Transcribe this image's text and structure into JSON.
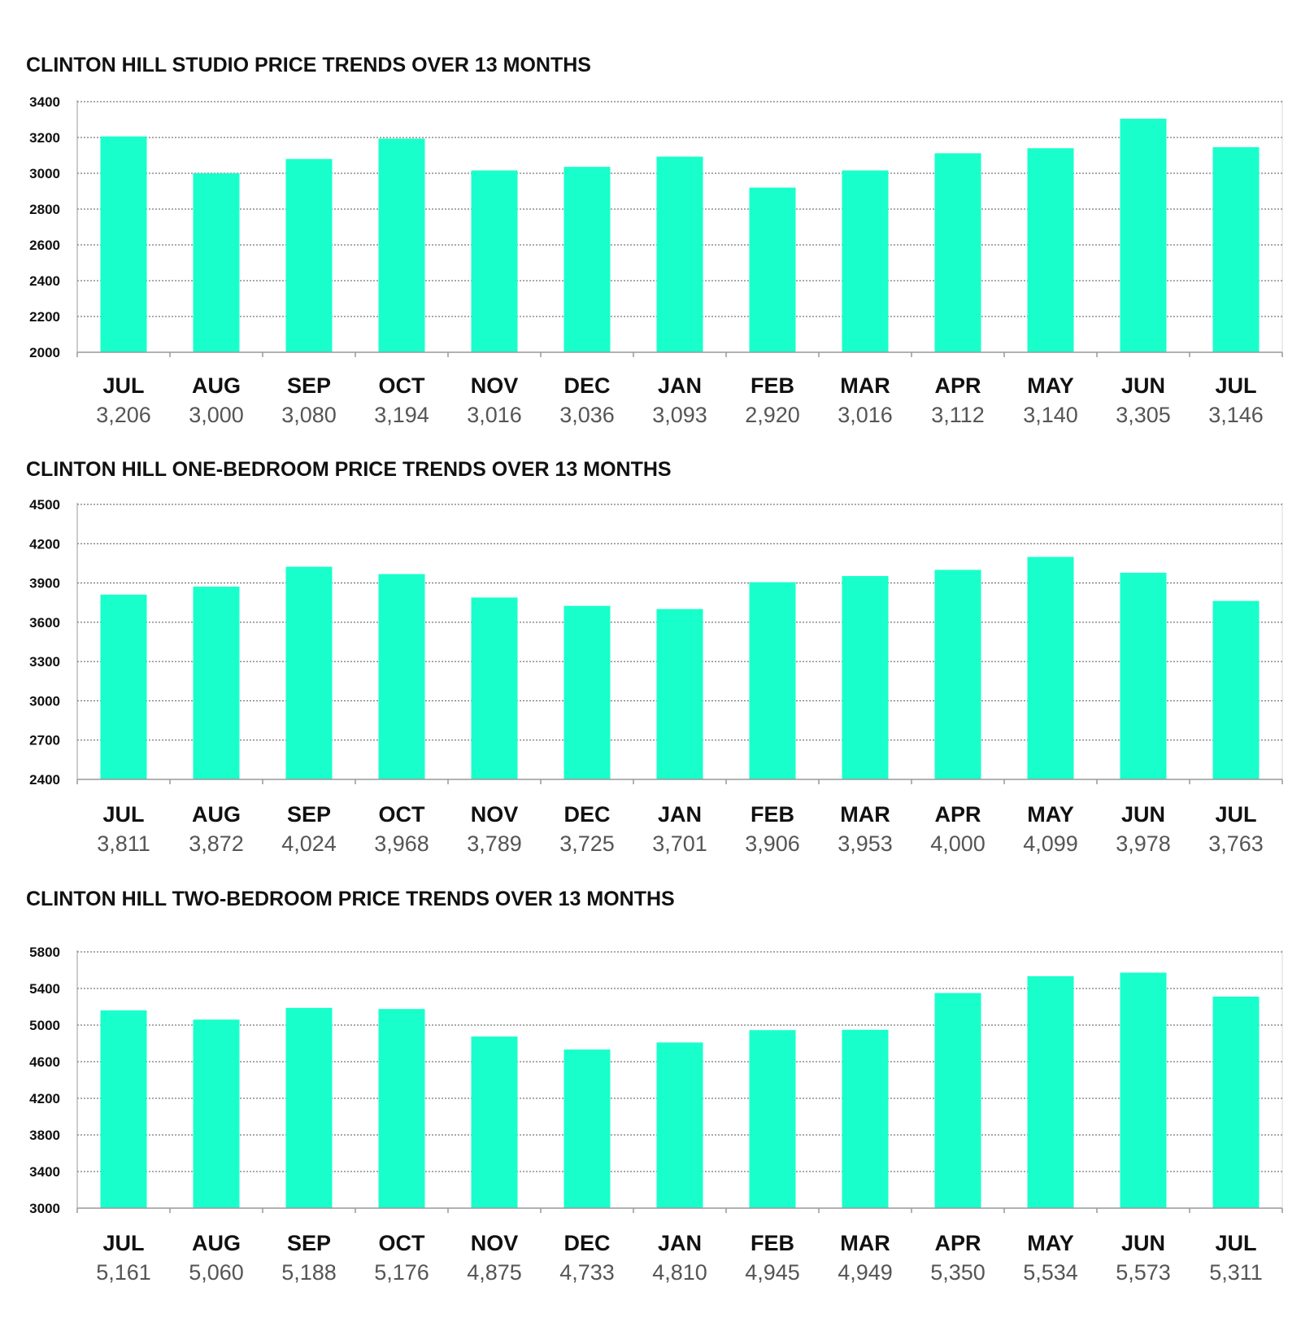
{
  "colors": {
    "bar": "#19FFCB",
    "grid": "#555555",
    "axis": "#999999",
    "title": "#111111",
    "value_label": "#555555"
  },
  "chart_data": [
    {
      "type": "bar",
      "title": "CLINTON HILL STUDIO PRICE TRENDS OVER 13 MONTHS",
      "categories": [
        "JUL",
        "AUG",
        "SEP",
        "OCT",
        "NOV",
        "DEC",
        "JAN",
        "FEB",
        "MAR",
        "APR",
        "MAY",
        "JUN",
        "JUL"
      ],
      "values": [
        3206,
        3000,
        3080,
        3194,
        3016,
        3036,
        3093,
        2920,
        3016,
        3112,
        3140,
        3305,
        3146
      ],
      "value_labels": [
        "3,206",
        "3,000",
        "3,080",
        "3,194",
        "3,016",
        "3,036",
        "3,093",
        "2,920",
        "3,016",
        "3,112",
        "3,140",
        "3,305",
        "3,146"
      ],
      "yticks": [
        2000,
        2200,
        2400,
        2600,
        2800,
        3000,
        3200,
        3400
      ],
      "ylim": [
        2000,
        3400
      ],
      "grid": true,
      "xlabel": "",
      "ylabel": ""
    },
    {
      "type": "bar",
      "title": "CLINTON HILL ONE-BEDROOM PRICE TRENDS OVER 13 MONTHS",
      "categories": [
        "JUL",
        "AUG",
        "SEP",
        "OCT",
        "NOV",
        "DEC",
        "JAN",
        "FEB",
        "MAR",
        "APR",
        "MAY",
        "JUN",
        "JUL"
      ],
      "values": [
        3811,
        3872,
        4024,
        3968,
        3789,
        3725,
        3701,
        3906,
        3953,
        4000,
        4099,
        3978,
        3763
      ],
      "value_labels": [
        "3,811",
        "3,872",
        "4,024",
        "3,968",
        "3,789",
        "3,725",
        "3,701",
        "3,906",
        "3,953",
        "4,000",
        "4,099",
        "3,978",
        "3,763"
      ],
      "yticks": [
        2400,
        2700,
        3000,
        3300,
        3600,
        3900,
        4200,
        4500
      ],
      "ylim": [
        2400,
        4500
      ],
      "grid": true,
      "xlabel": "",
      "ylabel": ""
    },
    {
      "type": "bar",
      "title": "CLINTON HILL TWO-BEDROOM PRICE TRENDS OVER 13 MONTHS",
      "categories": [
        "JUL",
        "AUG",
        "SEP",
        "OCT",
        "NOV",
        "DEC",
        "JAN",
        "FEB",
        "MAR",
        "APR",
        "MAY",
        "JUN",
        "JUL"
      ],
      "values": [
        5161,
        5060,
        5188,
        5176,
        4875,
        4733,
        4810,
        4945,
        4949,
        5350,
        5534,
        5573,
        5311
      ],
      "value_labels": [
        "5,161",
        "5,060",
        "5,188",
        "5,176",
        "4,875",
        "4,733",
        "4,810",
        "4,945",
        "4,949",
        "5,350",
        "5,534",
        "5,573",
        "5,311"
      ],
      "yticks": [
        3000,
        3400,
        3800,
        4200,
        4600,
        5000,
        5400,
        5800
      ],
      "ylim": [
        3000,
        5800
      ],
      "grid": true,
      "xlabel": "",
      "ylabel": ""
    }
  ]
}
